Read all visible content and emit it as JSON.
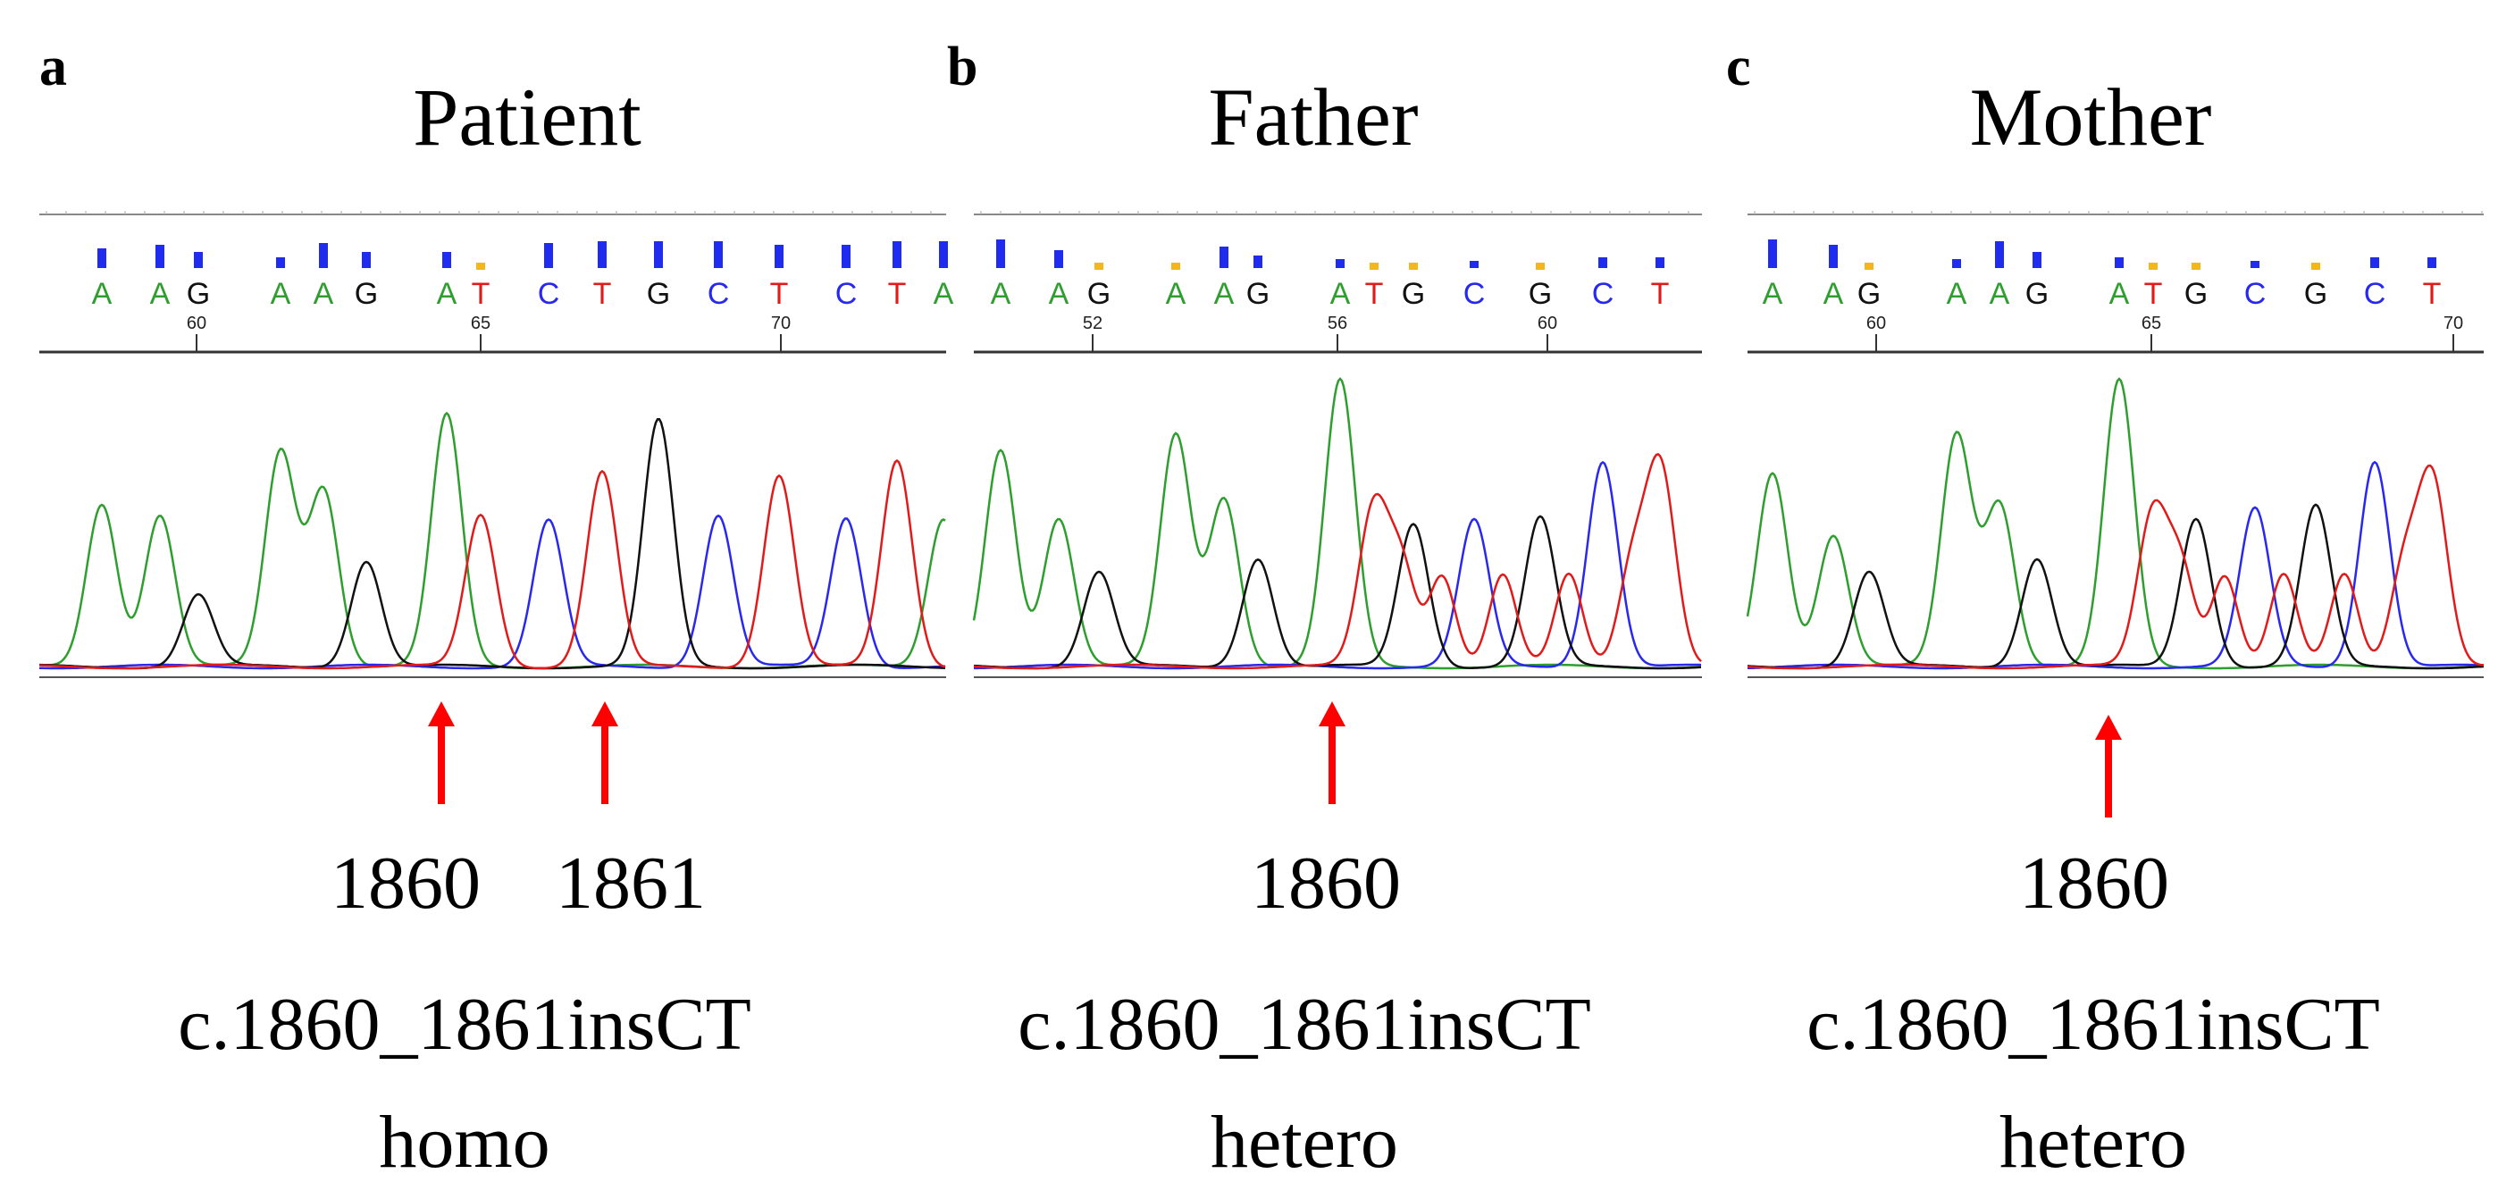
{
  "colors": {
    "A": "#2e9e2e",
    "C": "#2828f0",
    "G": "#111111",
    "T": "#e11a1a",
    "N": "#f2b81a",
    "arrow": "#ff0000"
  },
  "panels": [
    {
      "id": "a",
      "letter": "a",
      "title": "Patient",
      "bases": [
        "A",
        "A",
        "G",
        "A",
        "A",
        "G",
        "A",
        "T",
        "C",
        "T",
        "G",
        "C",
        "T",
        "C",
        "T",
        "A"
      ],
      "quality": [
        0.55,
        0.65,
        0.45,
        0.3,
        0.7,
        0.45,
        0.45,
        0.15,
        0.7,
        0.75,
        0.75,
        0.75,
        0.65,
        0.65,
        0.75,
        0.75
      ],
      "position_ticks": [
        "60",
        "65",
        "70"
      ],
      "peak_heights": [
        0.57,
        0.53,
        0.25,
        0.75,
        0.62,
        0.37,
        0.88,
        0.53,
        0.51,
        0.68,
        0.86,
        0.53,
        0.67,
        0.52,
        0.72,
        0.52
      ],
      "position_labels": [
        "1860",
        "1861"
      ],
      "mutation": "c.1860_1861insCT",
      "zygosity": "homo"
    },
    {
      "id": "b",
      "letter": "b",
      "title": "Father",
      "bases": [
        "A",
        "A",
        "G",
        "A",
        "A",
        "G",
        "A",
        "T",
        "G",
        "C",
        "G",
        "C",
        "T"
      ],
      "quality": [
        0.8,
        0.5,
        0.15,
        0.15,
        0.6,
        0.35,
        0.25,
        0.1,
        0.12,
        0.2,
        0.12,
        0.3,
        0.3
      ],
      "position_ticks": [
        "52",
        "56",
        "60"
      ],
      "peak_heights": [
        0.76,
        0.52,
        0.33,
        0.81,
        0.59,
        0.38,
        1.0,
        0.56,
        0.5,
        0.51,
        0.52,
        0.72,
        0.71
      ],
      "position_labels": [
        "1860"
      ],
      "mutation": "c.1860_1861insCT",
      "zygosity": "hetero"
    },
    {
      "id": "c",
      "letter": "c",
      "title": "Mother",
      "bases": [
        "A",
        "A",
        "G",
        "A",
        "A",
        "G",
        "A",
        "T",
        "G",
        "C",
        "G",
        "C",
        "T"
      ],
      "quality": [
        0.8,
        0.65,
        0.15,
        0.25,
        0.75,
        0.45,
        0.3,
        0.1,
        0.12,
        0.2,
        0.12,
        0.3,
        0.3
      ],
      "position_ticks": [
        "60",
        "65",
        "70"
      ],
      "peak_heights": [
        0.68,
        0.46,
        0.33,
        0.81,
        0.57,
        0.38,
        1.0,
        0.54,
        0.52,
        0.55,
        0.56,
        0.72,
        0.67
      ],
      "position_labels": [
        "1860"
      ],
      "mutation": "c.1860_1861insCT",
      "zygosity": "hetero"
    }
  ]
}
